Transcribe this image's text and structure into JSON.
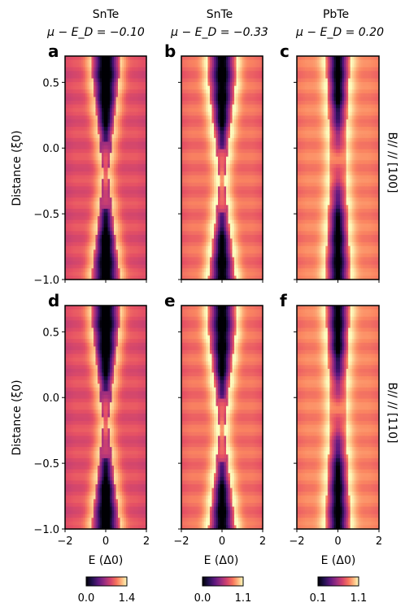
{
  "columns": [
    {
      "material": "SnTe",
      "mu_label": "μ − E_D = −0.10"
    },
    {
      "material": "SnTe",
      "mu_label": "μ − E_D = −0.33"
    },
    {
      "material": "PbTe",
      "mu_label": "μ − E_D = 0.20"
    }
  ],
  "rows": [
    {
      "field_label": "B// // [100]"
    },
    {
      "field_label": "B// // [110]"
    }
  ],
  "panel_letters": [
    "a",
    "b",
    "c",
    "d",
    "e",
    "f"
  ],
  "axes": {
    "ylabel": "Distance (ξ0)",
    "xlabel": "E (Δ0)",
    "x_ticks": [
      "−2",
      "0",
      "2"
    ],
    "y_ticks": [
      "0.5",
      "0.0",
      "−0.5",
      "−1.0"
    ]
  },
  "colorbars": [
    {
      "min_label": "0.0",
      "max_label": "1.4"
    },
    {
      "min_label": "0.0",
      "max_label": "1.1"
    },
    {
      "min_label": "0.1",
      "max_label": "1.1"
    }
  ],
  "chart_data": {
    "type": "heatmap",
    "colormap": "magma",
    "x_range": [
      -2,
      2
    ],
    "y_range": [
      -1.0,
      0.7
    ],
    "x_ticks": [
      -2,
      0,
      2
    ],
    "y_ticks": [
      0.5,
      0.0,
      -0.5,
      -1.0
    ],
    "panels": [
      {
        "id": "a",
        "material": "SnTe",
        "mu": -0.1,
        "field": "[100]",
        "colorbar_range": [
          0.0,
          1.4
        ]
      },
      {
        "id": "b",
        "material": "SnTe",
        "mu": -0.33,
        "field": "[100]",
        "colorbar_range": [
          0.0,
          1.1
        ]
      },
      {
        "id": "c",
        "material": "PbTe",
        "mu": 0.2,
        "field": "[100]",
        "colorbar_range": [
          0.1,
          1.1
        ]
      },
      {
        "id": "d",
        "material": "SnTe",
        "mu": -0.1,
        "field": "[110]",
        "colorbar_range": [
          0.0,
          1.4
        ]
      },
      {
        "id": "e",
        "material": "SnTe",
        "mu": -0.33,
        "field": "[110]",
        "colorbar_range": [
          0.0,
          1.1
        ]
      },
      {
        "id": "f",
        "material": "PbTe",
        "mu": 0.2,
        "field": "[110]",
        "colorbar_range": [
          0.1,
          1.1
        ]
      }
    ]
  }
}
